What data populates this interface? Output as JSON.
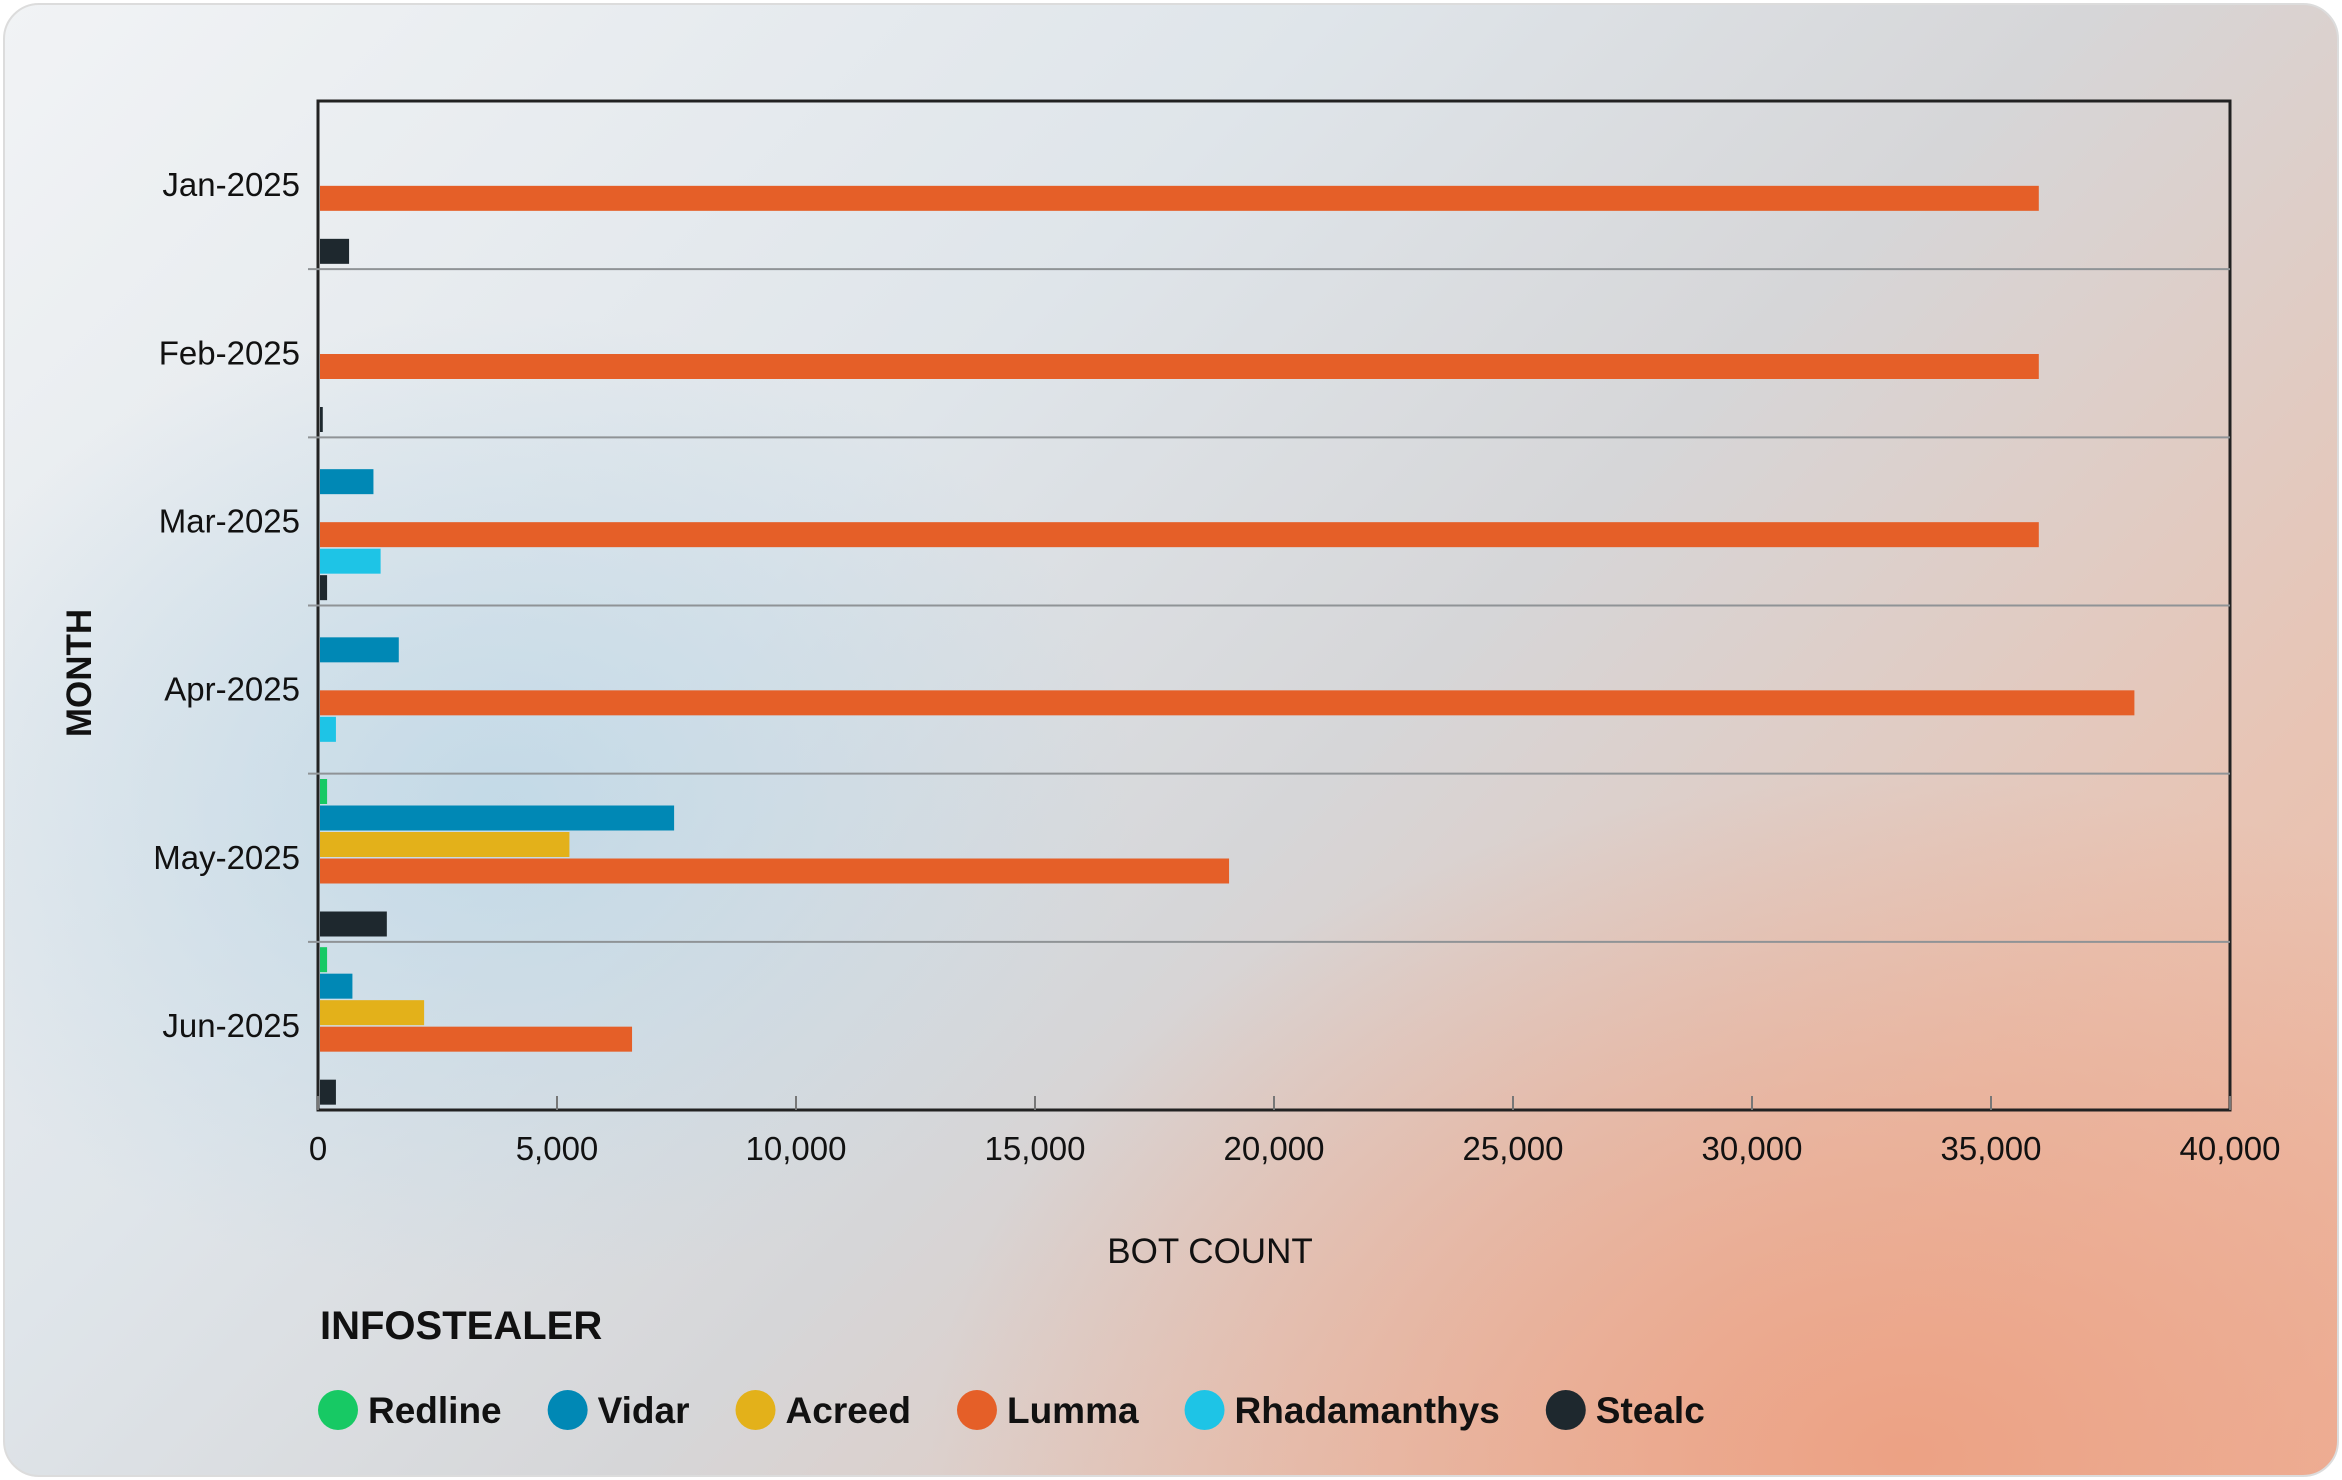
{
  "chart_data": {
    "type": "bar",
    "orientation": "horizontal",
    "categories": [
      "Jan-2025",
      "Feb-2025",
      "Mar-2025",
      "Apr-2025",
      "May-2025",
      "Jun-2025"
    ],
    "series": [
      {
        "name": "Redline",
        "color": "#17c964",
        "values": [
          0,
          0,
          0,
          0,
          190,
          190
        ]
      },
      {
        "name": "Vidar",
        "color": "#0088b5",
        "values": [
          0,
          0,
          1160,
          1690,
          7450,
          720
        ]
      },
      {
        "name": "Acreed",
        "color": "#e3b11a",
        "values": [
          0,
          0,
          0,
          0,
          5260,
          2220
        ]
      },
      {
        "name": "Lumma",
        "color": "#e55f28",
        "values": [
          36000,
          36000,
          36000,
          38000,
          19060,
          6570
        ]
      },
      {
        "name": "Rhadamanthys",
        "color": "#1ec4e6",
        "values": [
          0,
          0,
          1310,
          375,
          0,
          0
        ]
      },
      {
        "name": "Stealc",
        "color": "#1e282e",
        "values": [
          650,
          100,
          190,
          0,
          1440,
          375
        ]
      }
    ],
    "xlabel": "BOT COUNT",
    "ylabel": "MONTH",
    "xlim": [
      0,
      40000
    ],
    "xticks": [
      "0",
      "5,000",
      "10,000",
      "15,000",
      "20,000",
      "25,000",
      "30,000",
      "35,000",
      "40,000"
    ],
    "legend_title": "INFOSTEALER",
    "legend_position": "bottom-left",
    "grid": "horizontal separators between months"
  }
}
